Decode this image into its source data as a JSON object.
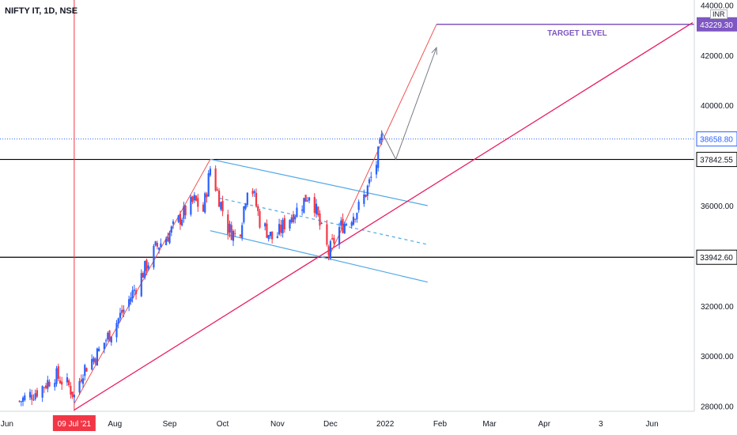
{
  "chart_title": "NIFTY IT, 1D, NSE",
  "currency": "INR",
  "colors": {
    "up": "#2962ff",
    "down": "#f23645",
    "channel": "#4fa8e8",
    "trendline": "#e91e63",
    "target": "#7e57c2",
    "level": "#000000",
    "price_label": "#2962ff",
    "date_label": "#f23645",
    "projection": "#787b86"
  },
  "chart_data": {
    "type": "candlestick",
    "symbol": "NIFTY IT",
    "interval": "1D",
    "exchange": "NSE",
    "ylim": [
      27800,
      44200
    ],
    "y_ticks": [
      28000,
      30000,
      32000,
      34000,
      36000,
      38000,
      40000,
      42000,
      44000
    ],
    "y_tick_labels": [
      "28000.00",
      "30000.00",
      "32000.00",
      "34000.00",
      "36000.00",
      "38000.00",
      "40000.00",
      "42000.00",
      "44000.00"
    ],
    "x_range": [
      "2021-05-28",
      "2022-06-24"
    ],
    "x_ticks": [
      {
        "date": "2021-06-01",
        "label": "Jun"
      },
      {
        "date": "2021-08-01",
        "label": "Aug"
      },
      {
        "date": "2021-09-01",
        "label": "Sep"
      },
      {
        "date": "2021-10-01",
        "label": "Oct"
      },
      {
        "date": "2021-11-01",
        "label": "Nov"
      },
      {
        "date": "2021-12-01",
        "label": "Dec"
      },
      {
        "date": "2022-01-01",
        "label": "2022"
      },
      {
        "date": "2022-02-01",
        "label": "Feb"
      },
      {
        "date": "2022-03-01",
        "label": "Mar"
      },
      {
        "date": "2022-04-01",
        "label": "Apr"
      },
      {
        "date": "2022-05-03",
        "label": "3"
      },
      {
        "date": "2022-06-01",
        "label": "Jun"
      }
    ],
    "highlighted_date": {
      "date": "2021-07-09",
      "label": "09 Jul '21"
    },
    "price_path": [
      {
        "date": "2021-06-08",
        "close": 28200
      },
      {
        "date": "2021-06-20",
        "close": 28700
      },
      {
        "date": "2021-06-28",
        "close": 29250
      },
      {
        "date": "2021-07-06",
        "close": 28800
      },
      {
        "date": "2021-07-09",
        "close": 28400
      },
      {
        "date": "2021-07-14",
        "close": 29450
      },
      {
        "date": "2021-07-22",
        "close": 30100
      },
      {
        "date": "2021-07-30",
        "close": 31000
      },
      {
        "date": "2021-08-08",
        "close": 32100
      },
      {
        "date": "2021-08-16",
        "close": 33200
      },
      {
        "date": "2021-08-24",
        "close": 34300
      },
      {
        "date": "2021-09-01",
        "close": 34900
      },
      {
        "date": "2021-09-08",
        "close": 35600
      },
      {
        "date": "2021-09-15",
        "close": 36200
      },
      {
        "date": "2021-09-20",
        "close": 35800
      },
      {
        "date": "2021-09-24",
        "close": 37500
      },
      {
        "date": "2021-09-29",
        "close": 36300
      },
      {
        "date": "2021-10-04",
        "close": 35100
      },
      {
        "date": "2021-10-10",
        "close": 34700
      },
      {
        "date": "2021-10-16",
        "close": 37200
      },
      {
        "date": "2021-10-22",
        "close": 35400
      },
      {
        "date": "2021-10-30",
        "close": 34600
      },
      {
        "date": "2021-11-06",
        "close": 35400
      },
      {
        "date": "2021-11-13",
        "close": 35900
      },
      {
        "date": "2021-11-20",
        "close": 36600
      },
      {
        "date": "2021-11-25",
        "close": 35200
      },
      {
        "date": "2021-11-30",
        "close": 34100
      },
      {
        "date": "2021-12-06",
        "close": 35100
      },
      {
        "date": "2021-12-12",
        "close": 35500
      },
      {
        "date": "2021-12-18",
        "close": 36000
      },
      {
        "date": "2021-12-22",
        "close": 36700
      },
      {
        "date": "2021-12-27",
        "close": 37700
      },
      {
        "date": "2021-12-30",
        "close": 38658.8
      }
    ],
    "horizontal_levels": [
      {
        "name": "resistance",
        "value": 37842.55,
        "label": "37842.55"
      },
      {
        "name": "support",
        "value": 33942.6,
        "label": "33942.60"
      }
    ],
    "last_price": {
      "value": 38658.8,
      "label": "38658.80"
    },
    "target": {
      "value": 43229.3,
      "label": "43229.30",
      "text": "TARGET LEVEL",
      "start_date": "2022-01-30"
    },
    "channel": {
      "upper": [
        {
          "date": "2021-09-24",
          "value": 37850
        },
        {
          "date": "2022-01-25",
          "value": 36000
        }
      ],
      "middle": [
        {
          "date": "2021-09-29",
          "value": 36300
        },
        {
          "date": "2022-01-25",
          "value": 34450
        }
      ],
      "lower": [
        {
          "date": "2021-09-24",
          "value": 35000
        },
        {
          "date": "2022-01-25",
          "value": 32950
        }
      ]
    },
    "rising_trendline": [
      {
        "date": "2021-07-09",
        "value": 27850
      },
      {
        "date": "2022-06-24",
        "value": 43300
      }
    ],
    "impulse_lines": [
      [
        {
          "date": "2021-07-09",
          "value": 28100
        },
        {
          "date": "2021-09-24",
          "value": 37850
        }
      ],
      [
        {
          "date": "2021-11-30",
          "value": 33942.6
        },
        {
          "date": "2022-01-30",
          "value": 43229.3
        }
      ]
    ],
    "projection_path": [
      {
        "date": "2021-12-30",
        "value": 38950
      },
      {
        "date": "2022-01-07",
        "value": 37850
      },
      {
        "date": "2022-01-30",
        "value": 42300
      }
    ]
  }
}
